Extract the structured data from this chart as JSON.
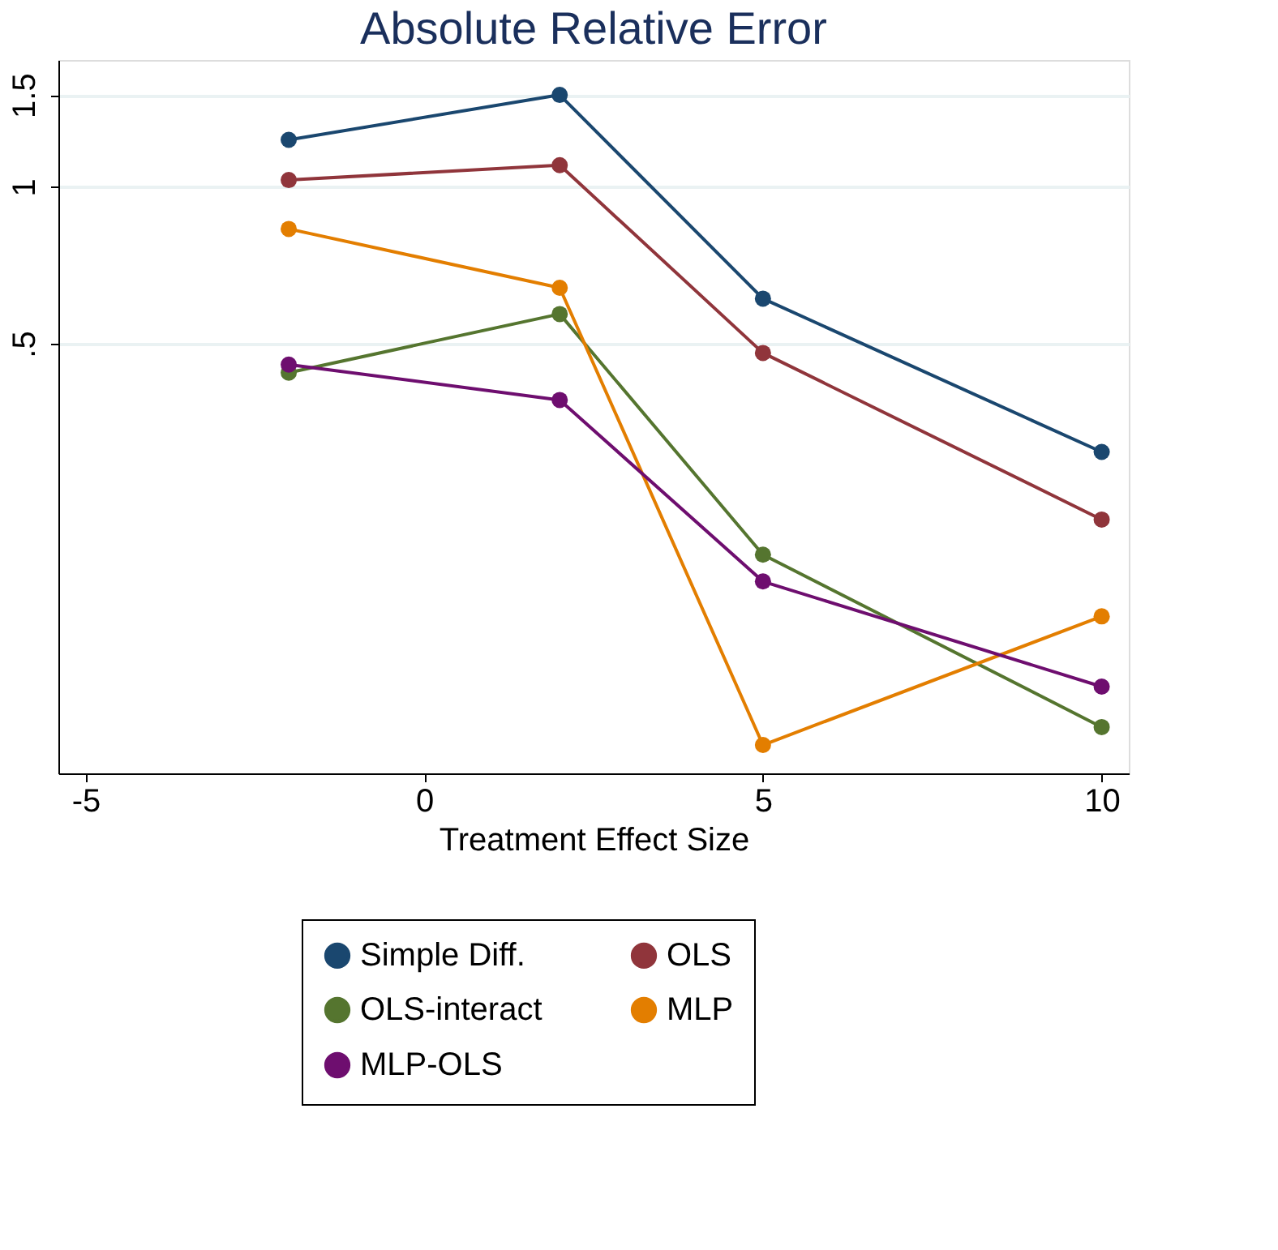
{
  "chart_data": {
    "type": "line",
    "title": "Absolute Relative Error",
    "xlabel": "Treatment Effect Size",
    "x": [
      -2,
      2,
      5,
      10
    ],
    "series": [
      {
        "name": "Simple Diff.",
        "color": "#1a476f",
        "values": [
          1.23,
          1.5,
          0.61,
          0.31
        ]
      },
      {
        "name": "OLS",
        "color": "#90353b",
        "values": [
          1.03,
          1.1,
          0.48,
          0.23
        ]
      },
      {
        "name": "OLS-interact",
        "color": "#55752f",
        "values": [
          0.44,
          0.57,
          0.197,
          0.092
        ]
      },
      {
        "name": "MLP",
        "color": "#e37e00",
        "values": [
          0.83,
          0.64,
          0.085,
          0.15
        ]
      },
      {
        "name": "MLP-OLS",
        "color": "#6e0e6f",
        "values": [
          0.456,
          0.39,
          0.175,
          0.11
        ]
      }
    ],
    "xlim": [
      -5.4,
      10.4
    ],
    "xticks": [
      -5,
      0,
      5,
      10
    ],
    "ylim": [
      0.075,
      1.75
    ],
    "yticks": [
      {
        "value": 0.5,
        "label": ".5"
      },
      1,
      1.5
    ],
    "log": "y",
    "grid": "y",
    "legend": "bottom",
    "marker": "circle",
    "line_style": "solid"
  }
}
